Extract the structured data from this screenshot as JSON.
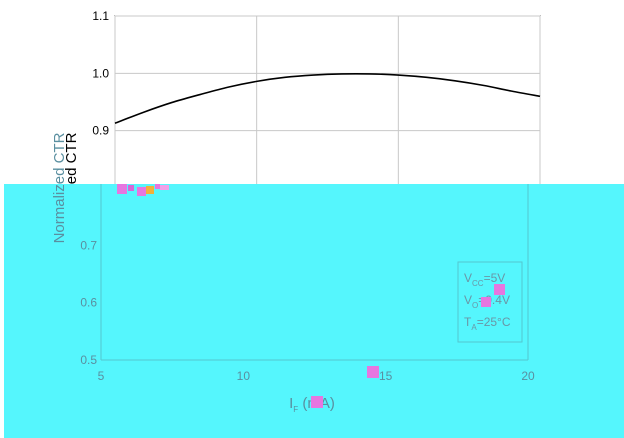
{
  "chart_data": {
    "type": "line",
    "title": "",
    "xlabel": "I_F (mA)",
    "ylabel": "Normalized CTR",
    "xlim": [
      5,
      20
    ],
    "ylim": [
      0.5,
      1.1
    ],
    "grid": true,
    "x_ticks": [
      "5",
      "10",
      "15",
      "20"
    ],
    "y_ticks": [
      "0.5",
      "0.6",
      "0.7",
      "0.8",
      "0.9",
      "1.0",
      "1.1"
    ],
    "series": [
      {
        "x": [
          5,
          6,
          7,
          8,
          9,
          10,
          11,
          12,
          13,
          14,
          15,
          16,
          17,
          18,
          19,
          20
        ],
        "values": [
          0.913,
          0.932,
          0.949,
          0.963,
          0.976,
          0.986,
          0.993,
          0.997,
          0.999,
          0.999,
          0.997,
          0.993,
          0.987,
          0.979,
          0.969,
          0.96
        ],
        "color": "#000000"
      }
    ],
    "legend": {
      "placement": "bottom-right",
      "lines": [
        {
          "main": "V",
          "sub": "CC",
          "rest": "=5V"
        },
        {
          "main": "V",
          "sub": "O",
          "rest": "=0.4V"
        },
        {
          "main": "T",
          "sub": "A",
          "rest": "=25°C"
        }
      ]
    },
    "colors": {
      "overlay": "#55f6fd",
      "marker": "#e676e0",
      "curve": "#000000"
    }
  }
}
